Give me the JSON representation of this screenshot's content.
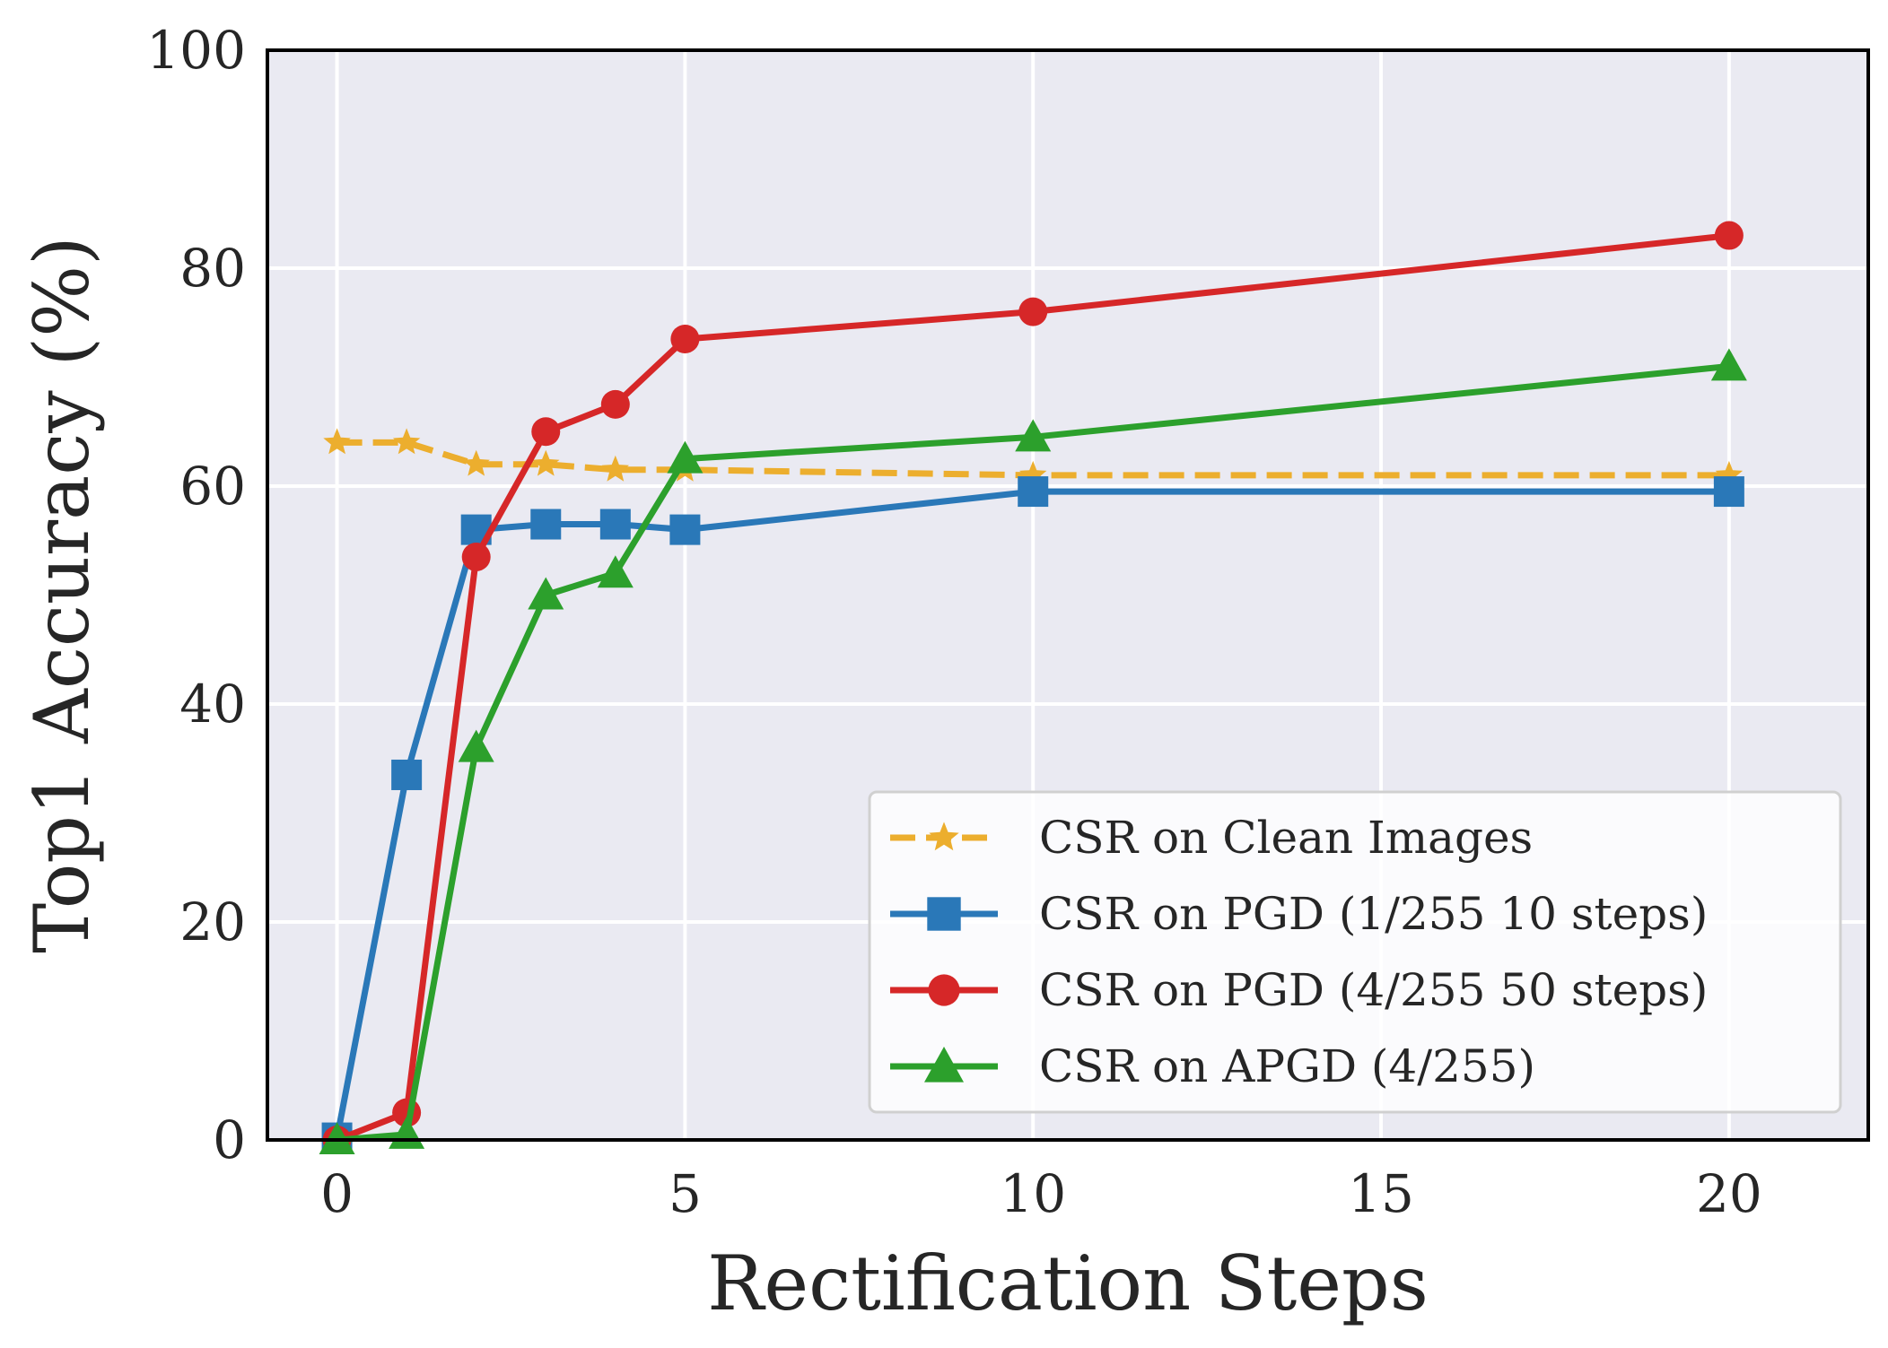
{
  "chart_data": {
    "type": "line",
    "title": "",
    "xlabel": "Rectification Steps",
    "ylabel": "Top1 Accuracy (%)",
    "xlim": [
      -1,
      22
    ],
    "ylim": [
      0,
      100
    ],
    "xticks": [
      0,
      5,
      10,
      15,
      20
    ],
    "yticks": [
      0,
      20,
      40,
      60,
      80,
      100
    ],
    "grid": true,
    "legend_position": "lower-right",
    "x": [
      0,
      1,
      2,
      3,
      4,
      5,
      10,
      20
    ],
    "series": [
      {
        "name": "CSR on Clean Images",
        "color": "#ecae2e",
        "marker": "star",
        "dashed": true,
        "values": [
          64.0,
          64.0,
          62.0,
          62.0,
          61.5,
          61.5,
          61.0,
          61.0
        ]
      },
      {
        "name": "CSR on PGD (1/255 10 steps)",
        "color": "#2a78b8",
        "marker": "square",
        "dashed": false,
        "values": [
          0.2,
          33.5,
          56.0,
          56.5,
          56.5,
          56.0,
          59.5,
          59.5
        ]
      },
      {
        "name": "CSR on PGD (4/255 50 steps)",
        "color": "#d62728",
        "marker": "circle",
        "dashed": false,
        "values": [
          0.0,
          2.5,
          53.5,
          65.0,
          67.5,
          73.5,
          76.0,
          83.0
        ]
      },
      {
        "name": "CSR on APGD (4/255)",
        "color": "#2ca02c",
        "marker": "triangle",
        "dashed": false,
        "values": [
          0.0,
          0.5,
          36.0,
          50.0,
          52.0,
          62.5,
          64.5,
          71.0
        ]
      }
    ]
  }
}
